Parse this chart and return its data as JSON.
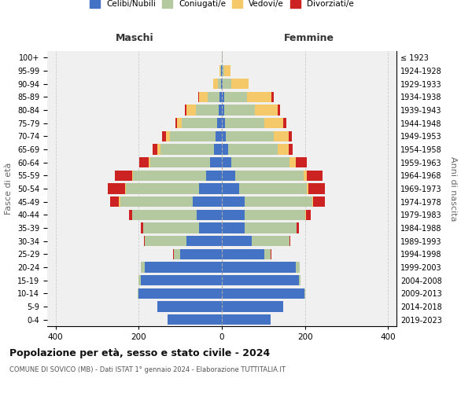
{
  "age_groups": [
    "0-4",
    "5-9",
    "10-14",
    "15-19",
    "20-24",
    "25-29",
    "30-34",
    "35-39",
    "40-44",
    "45-49",
    "50-54",
    "55-59",
    "60-64",
    "65-69",
    "70-74",
    "75-79",
    "80-84",
    "85-89",
    "90-94",
    "95-99",
    "100+"
  ],
  "birth_years": [
    "2019-2023",
    "2014-2018",
    "2009-2013",
    "2004-2008",
    "1999-2003",
    "1994-1998",
    "1989-1993",
    "1984-1988",
    "1979-1983",
    "1974-1978",
    "1969-1973",
    "1964-1968",
    "1959-1963",
    "1954-1958",
    "1949-1953",
    "1944-1948",
    "1939-1943",
    "1934-1938",
    "1929-1933",
    "1924-1928",
    "≤ 1923"
  ],
  "male": {
    "celibi": [
      130,
      155,
      200,
      195,
      185,
      100,
      85,
      55,
      60,
      70,
      55,
      38,
      28,
      18,
      15,
      12,
      8,
      5,
      2,
      1,
      0
    ],
    "coniugati": [
      0,
      0,
      3,
      5,
      10,
      15,
      100,
      135,
      155,
      175,
      175,
      175,
      145,
      130,
      110,
      85,
      55,
      30,
      8,
      2,
      0
    ],
    "vedovi": [
      0,
      0,
      0,
      0,
      0,
      0,
      0,
      0,
      1,
      2,
      2,
      2,
      3,
      8,
      10,
      10,
      22,
      20,
      10,
      2,
      0
    ],
    "divorziati": [
      0,
      0,
      0,
      0,
      0,
      2,
      2,
      5,
      8,
      22,
      42,
      42,
      22,
      10,
      8,
      5,
      4,
      2,
      0,
      0,
      0
    ]
  },
  "female": {
    "nubili": [
      118,
      148,
      198,
      185,
      178,
      102,
      72,
      55,
      55,
      55,
      42,
      32,
      22,
      15,
      10,
      8,
      5,
      5,
      2,
      1,
      0
    ],
    "coniugate": [
      0,
      0,
      3,
      5,
      10,
      15,
      90,
      125,
      145,
      162,
      162,
      165,
      140,
      120,
      115,
      95,
      75,
      55,
      20,
      5,
      1
    ],
    "vedove": [
      0,
      0,
      0,
      0,
      0,
      0,
      0,
      0,
      2,
      2,
      5,
      8,
      15,
      25,
      35,
      45,
      55,
      60,
      42,
      15,
      1
    ],
    "divorziate": [
      0,
      0,
      0,
      0,
      0,
      2,
      2,
      5,
      12,
      28,
      38,
      38,
      28,
      10,
      8,
      8,
      5,
      4,
      0,
      0,
      0
    ]
  },
  "colors": {
    "celibi": "#4472C4",
    "coniugati": "#B5C9A0",
    "vedovi": "#F5C96A",
    "divorziati": "#CC2222"
  },
  "xlim": 420,
  "title": "Popolazione per età, sesso e stato civile - 2024",
  "subtitle": "COMUNE DI SOVICO (MB) - Dati ISTAT 1° gennaio 2024 - Elaborazione TUTTITALIA.IT",
  "xlabel_left": "Maschi",
  "xlabel_right": "Femmine",
  "ylabel_left": "Fasce di età",
  "ylabel_right": "Anni di nascita",
  "bg_color": "#f0f0f0",
  "grid_color": "#cccccc"
}
